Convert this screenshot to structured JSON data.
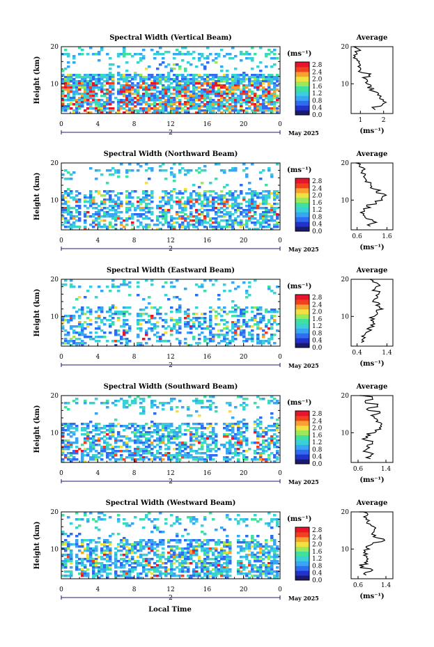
{
  "global": {
    "xlabel": "Local Time",
    "date_label": "May 2025",
    "day_label": "2",
    "ylabel": "Height (km)",
    "colorbar_unit": "(ms⁻¹)",
    "avg_title": "Average",
    "avg_xlabel": "(ms⁻¹)"
  },
  "colors": {
    "scale": [
      "#1a1a6e",
      "#2233cc",
      "#2f6cf0",
      "#38a6f2",
      "#39d0d8",
      "#3fe0a0",
      "#9be85a",
      "#f0e040",
      "#f8a030",
      "#f04020",
      "#e8142c"
    ]
  },
  "chart_data": [
    {
      "type": "heatmap",
      "title": "Spectral Width (Vertical Beam)",
      "xlabel": "Local Time",
      "ylabel": "Height (km)",
      "x_ticks": [
        "0",
        "4",
        "8",
        "12",
        "16",
        "20",
        "0"
      ],
      "y_ticks": [
        "20",
        "10"
      ],
      "xlim": [
        0,
        24
      ],
      "ylim": [
        2,
        20
      ],
      "colorbar": {
        "unit": "(ms⁻¹)",
        "ticks": [
          "2.8",
          "2.4",
          "2.0",
          "1.6",
          "1.2",
          "0.8",
          "0.4",
          "0.0"
        ],
        "range": [
          0,
          2.8
        ]
      },
      "profile": {
        "title": "Average",
        "xlabel": "(ms⁻¹)",
        "x_ticks": [
          "1",
          "2"
        ],
        "xlim": [
          0.6,
          2.4
        ],
        "y_ticks": [
          "20",
          "10"
        ],
        "heights": [
          3,
          4,
          5,
          6,
          7,
          8,
          9,
          10,
          11,
          12,
          13,
          14,
          15,
          16,
          17,
          18,
          19,
          20
        ],
        "values": [
          1.6,
          1.9,
          2.0,
          1.8,
          1.7,
          1.5,
          1.4,
          1.3,
          1.2,
          1.4,
          1.0,
          1.0,
          0.9,
          0.9,
          0.8,
          0.8,
          0.9,
          0.8
        ]
      }
    },
    {
      "type": "heatmap",
      "title": "Spectral Width (Northward Beam)",
      "xlabel": "Local Time",
      "ylabel": "Height (km)",
      "x_ticks": [
        "0",
        "4",
        "8",
        "12",
        "16",
        "20",
        "0"
      ],
      "y_ticks": [
        "20",
        "10"
      ],
      "xlim": [
        0,
        24
      ],
      "ylim": [
        2,
        20
      ],
      "colorbar": {
        "unit": "(ms⁻¹)",
        "ticks": [
          "2.8",
          "2.4",
          "2.0",
          "1.6",
          "1.2",
          "0.8",
          "0.4",
          "0.0"
        ],
        "range": [
          0,
          2.8
        ]
      },
      "profile": {
        "title": "Average",
        "xlabel": "(ms⁻¹)",
        "x_ticks": [
          "0.6",
          "1.6"
        ],
        "xlim": [
          0.4,
          1.8
        ],
        "y_ticks": [
          "20",
          "10"
        ],
        "heights": [
          3,
          4,
          5,
          6,
          7,
          8,
          9,
          10,
          11,
          12,
          13,
          14,
          15,
          16,
          17,
          18,
          19,
          20
        ],
        "values": [
          1.0,
          1.2,
          0.9,
          0.8,
          0.9,
          1.0,
          1.2,
          1.4,
          1.5,
          1.3,
          1.1,
          1.0,
          0.9,
          0.9,
          0.8,
          0.8,
          0.7,
          0.6
        ]
      }
    },
    {
      "type": "heatmap",
      "title": "Spectral Width (Eastward Beam)",
      "xlabel": "Local Time",
      "ylabel": "Height (km)",
      "x_ticks": [
        "0",
        "4",
        "8",
        "12",
        "16",
        "20",
        "0"
      ],
      "y_ticks": [
        "20",
        "10"
      ],
      "xlim": [
        0,
        24
      ],
      "ylim": [
        2,
        20
      ],
      "colorbar": {
        "unit": "(ms⁻¹)",
        "ticks": [
          "2.8",
          "2.4",
          "2.0",
          "1.6",
          "1.2",
          "0.8",
          "0.4",
          "0.0"
        ],
        "range": [
          0,
          2.8
        ]
      },
      "profile": {
        "title": "Average",
        "xlabel": "(ms⁻¹)",
        "x_ticks": [
          "0.4",
          "1.4"
        ],
        "xlim": [
          0.2,
          1.6
        ],
        "y_ticks": [
          "20",
          "10"
        ],
        "heights": [
          3,
          4,
          5,
          6,
          7,
          8,
          9,
          10,
          11,
          12,
          13,
          14,
          15,
          16,
          17,
          18,
          19,
          20
        ],
        "values": [
          0.6,
          0.6,
          0.7,
          0.8,
          0.9,
          1.0,
          0.9,
          1.0,
          1.1,
          1.2,
          1.1,
          1.0,
          1.1,
          1.2,
          1.0,
          1.1,
          1.0,
          0.9
        ]
      }
    },
    {
      "type": "heatmap",
      "title": "Spectral Width (Southward Beam)",
      "xlabel": "Local Time",
      "ylabel": "Height (km)",
      "x_ticks": [
        "0",
        "4",
        "8",
        "12",
        "16",
        "20",
        "0"
      ],
      "y_ticks": [
        "20",
        "10"
      ],
      "xlim": [
        0,
        24
      ],
      "ylim": [
        2,
        20
      ],
      "colorbar": {
        "unit": "(ms⁻¹)",
        "ticks": [
          "2.8",
          "2.4",
          "2.0",
          "1.6",
          "1.2",
          "0.8",
          "0.4",
          "0.0"
        ],
        "range": [
          0,
          2.8
        ]
      },
      "profile": {
        "title": "Average",
        "xlabel": "(ms⁻¹)",
        "x_ticks": [
          "0.6",
          "1.4"
        ],
        "xlim": [
          0.4,
          1.6
        ],
        "y_ticks": [
          "20",
          "10"
        ],
        "heights": [
          3,
          4,
          5,
          6,
          7,
          8,
          9,
          10,
          11,
          12,
          13,
          14,
          15,
          16,
          17,
          18,
          19,
          20
        ],
        "values": [
          0.9,
          1.0,
          0.8,
          0.9,
          1.0,
          0.8,
          0.9,
          1.1,
          1.2,
          1.3,
          1.1,
          1.0,
          1.2,
          0.9,
          1.1,
          0.8,
          1.0,
          0.7
        ]
      }
    },
    {
      "type": "heatmap",
      "title": "Spectral Width (Westward Beam)",
      "xlabel": "Local Time",
      "ylabel": "Height (km)",
      "x_ticks": [
        "0",
        "4",
        "8",
        "12",
        "16",
        "20",
        "0"
      ],
      "y_ticks": [
        "20",
        "10"
      ],
      "xlim": [
        0,
        24
      ],
      "ylim": [
        2,
        20
      ],
      "colorbar": {
        "unit": "(ms⁻¹)",
        "ticks": [
          "2.8",
          "2.4",
          "2.0",
          "1.6",
          "1.2",
          "0.8",
          "0.4",
          "0.0"
        ],
        "range": [
          0,
          2.8
        ]
      },
      "profile": {
        "title": "Average",
        "xlabel": "(ms⁻¹)",
        "x_ticks": [
          "0.6",
          "1.4"
        ],
        "xlim": [
          0.4,
          1.6
        ],
        "y_ticks": [
          "20",
          "10"
        ],
        "heights": [
          3,
          4,
          5,
          6,
          7,
          8,
          9,
          10,
          11,
          12,
          13,
          14,
          15,
          16,
          17,
          18,
          19,
          20
        ],
        "values": [
          0.8,
          1.0,
          0.7,
          0.8,
          0.9,
          0.8,
          0.8,
          0.9,
          1.0,
          1.3,
          1.1,
          1.0,
          1.1,
          1.0,
          0.9,
          0.8,
          0.9,
          0.7
        ]
      }
    }
  ]
}
